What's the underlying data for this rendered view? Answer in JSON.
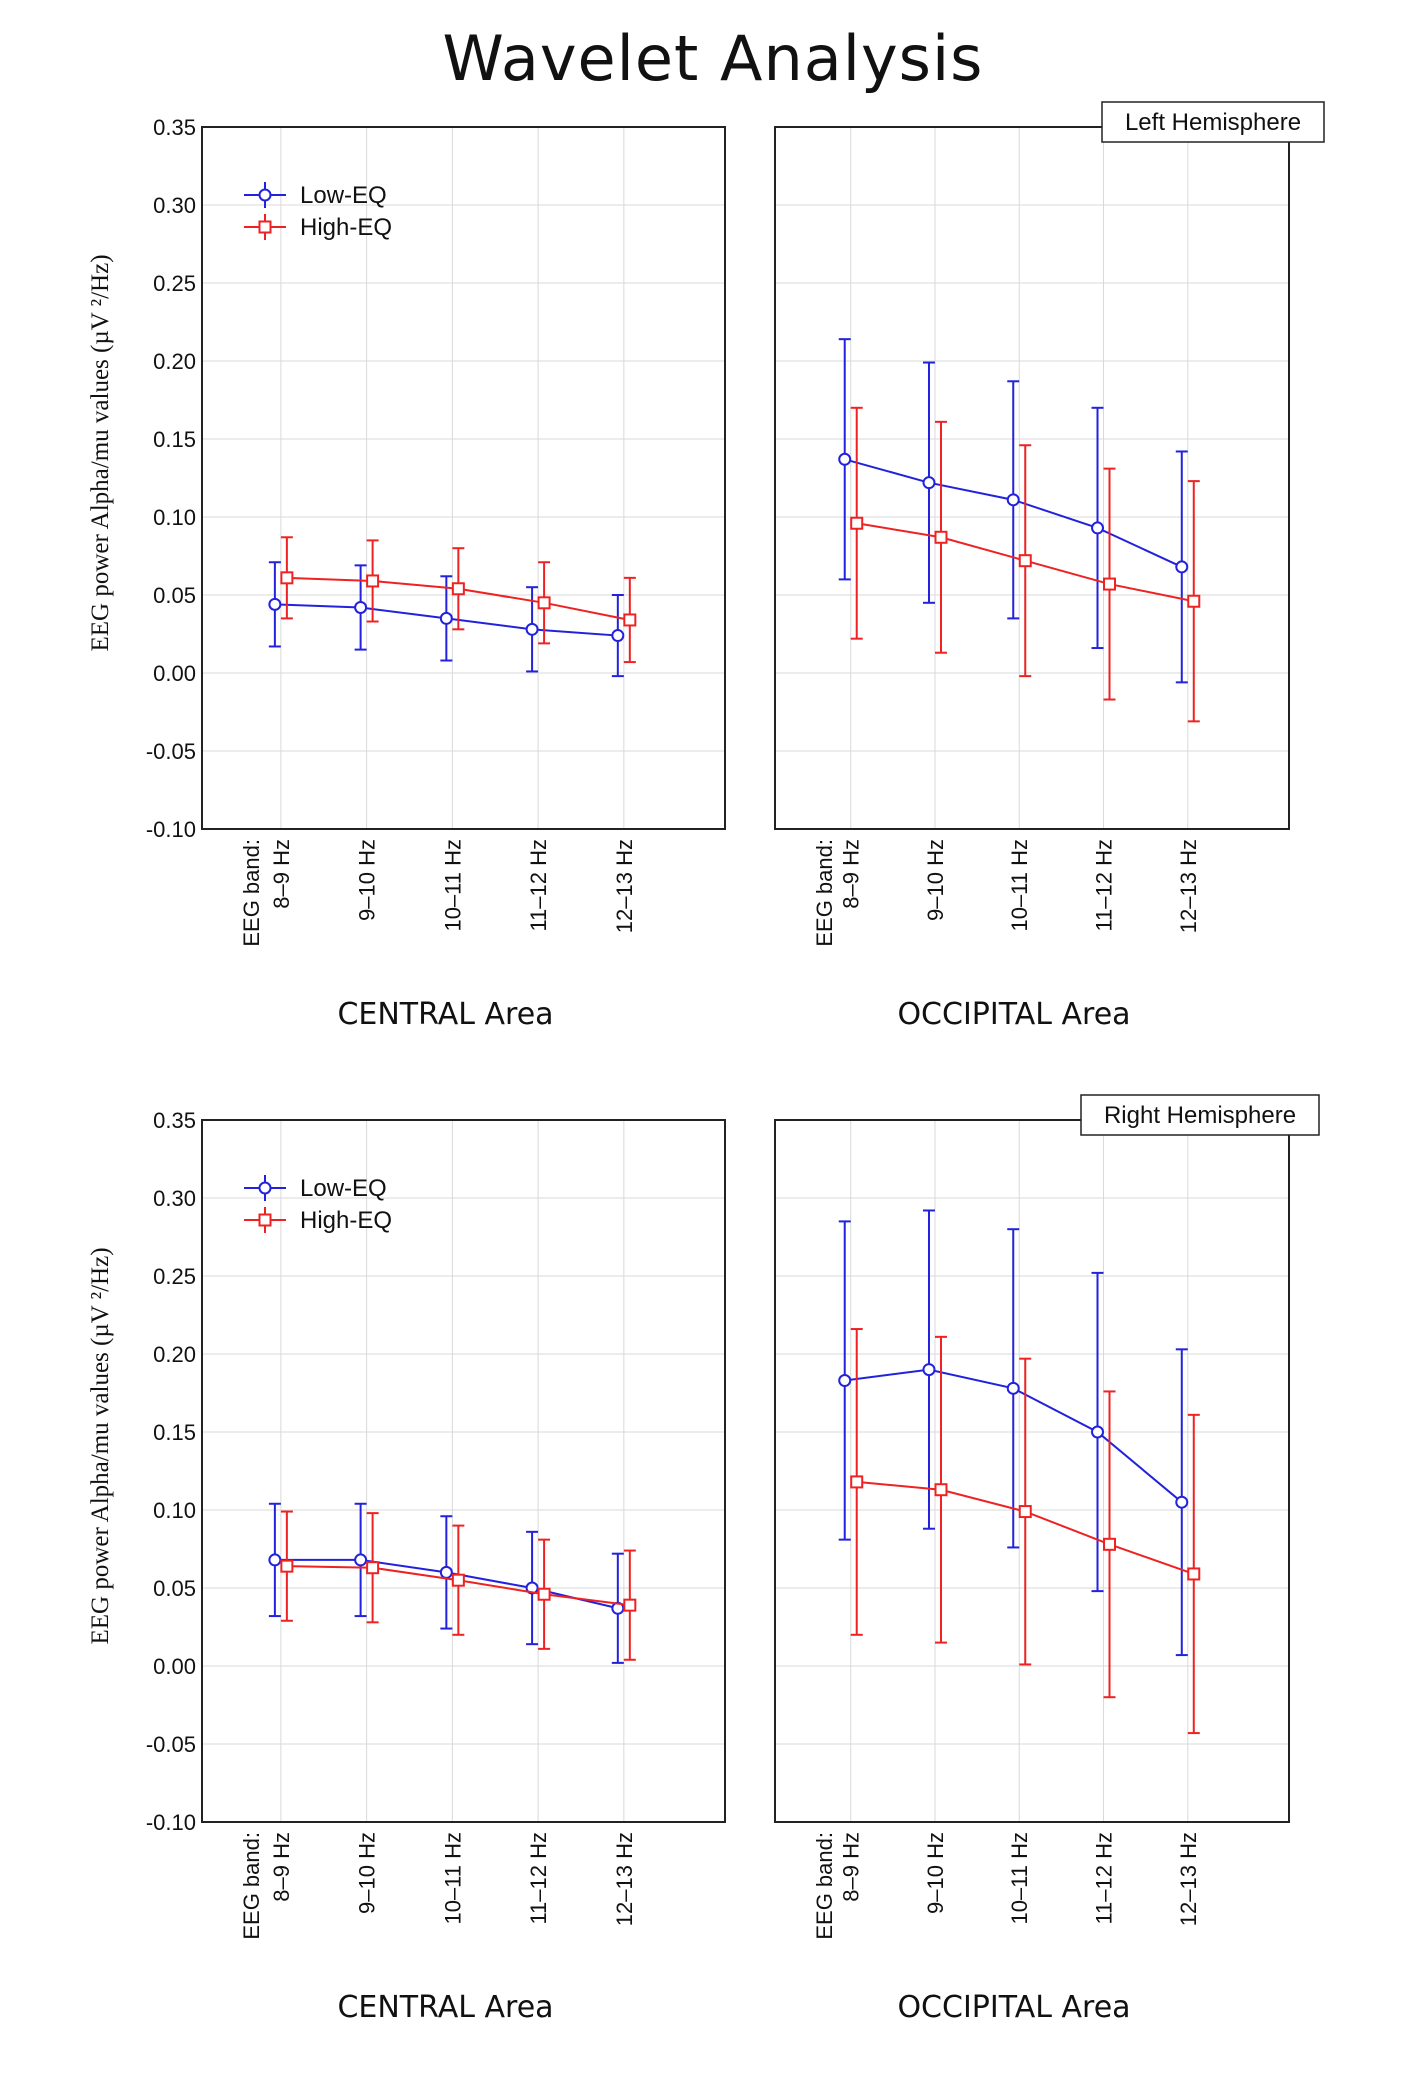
{
  "title": "Wavelet Analysis",
  "colors": {
    "low": "#2222dd",
    "high": "#ee2222",
    "grid": "#d9d9d9"
  },
  "chart_data": [
    {
      "type": "line",
      "hemisphere": "Left Hemisphere",
      "row": 0,
      "categories": [
        "8–9 Hz",
        "9–10 Hz",
        "10–11 Hz",
        "11–12 Hz",
        "12–13 Hz"
      ],
      "band_label": "EEG band:",
      "ylabel": "EEG power Alpha/mu values (µV ²/Hz)",
      "ylim": [
        -0.1,
        0.35
      ],
      "yticks": [
        "-0.10",
        "-0.05",
        "0.00",
        "0.05",
        "0.10",
        "0.15",
        "0.20",
        "0.25",
        "0.30",
        "0.35"
      ],
      "legend": [
        "Low-EQ",
        "High-EQ"
      ],
      "panels": [
        {
          "xlabel": "CENTRAL Area",
          "series": [
            {
              "name": "Low-EQ",
              "values": [
                0.044,
                0.042,
                0.035,
                0.028,
                0.024
              ],
              "err": [
                0.027,
                0.027,
                0.027,
                0.027,
                0.026
              ]
            },
            {
              "name": "High-EQ",
              "values": [
                0.061,
                0.059,
                0.054,
                0.045,
                0.034
              ],
              "err": [
                0.026,
                0.026,
                0.026,
                0.026,
                0.027
              ]
            }
          ]
        },
        {
          "xlabel": "OCCIPITAL Area",
          "series": [
            {
              "name": "Low-EQ",
              "values": [
                0.137,
                0.122,
                0.111,
                0.093,
                0.068
              ],
              "err": [
                0.077,
                0.077,
                0.076,
                0.077,
                0.074
              ]
            },
            {
              "name": "High-EQ",
              "values": [
                0.096,
                0.087,
                0.072,
                0.057,
                0.046
              ],
              "err": [
                0.074,
                0.074,
                0.074,
                0.074,
                0.077
              ]
            }
          ]
        }
      ]
    },
    {
      "type": "line",
      "hemisphere": "Right Hemisphere",
      "row": 1,
      "categories": [
        "8–9 Hz",
        "9–10 Hz",
        "10–11 Hz",
        "11–12 Hz",
        "12–13 Hz"
      ],
      "band_label": "EEG band:",
      "ylabel": "EEG power Alpha/mu values (µV ²/Hz)",
      "ylim": [
        -0.1,
        0.35
      ],
      "yticks": [
        "-0.10",
        "-0.05",
        "0.00",
        "0.05",
        "0.10",
        "0.15",
        "0.20",
        "0.25",
        "0.30",
        "0.35"
      ],
      "legend": [
        "Low-EQ",
        "High-EQ"
      ],
      "panels": [
        {
          "xlabel": "CENTRAL Area",
          "series": [
            {
              "name": "Low-EQ",
              "values": [
                0.068,
                0.068,
                0.06,
                0.05,
                0.037
              ],
              "err": [
                0.036,
                0.036,
                0.036,
                0.036,
                0.035
              ]
            },
            {
              "name": "High-EQ",
              "values": [
                0.064,
                0.063,
                0.055,
                0.046,
                0.039
              ],
              "err": [
                0.035,
                0.035,
                0.035,
                0.035,
                0.035
              ]
            }
          ]
        },
        {
          "xlabel": "OCCIPITAL Area",
          "series": [
            {
              "name": "Low-EQ",
              "values": [
                0.183,
                0.19,
                0.178,
                0.15,
                0.105
              ],
              "err": [
                0.102,
                0.102,
                0.102,
                0.102,
                0.098
              ]
            },
            {
              "name": "High-EQ",
              "values": [
                0.118,
                0.113,
                0.099,
                0.078,
                0.059
              ],
              "err": [
                0.098,
                0.098,
                0.098,
                0.098,
                0.102
              ]
            }
          ]
        }
      ]
    }
  ]
}
